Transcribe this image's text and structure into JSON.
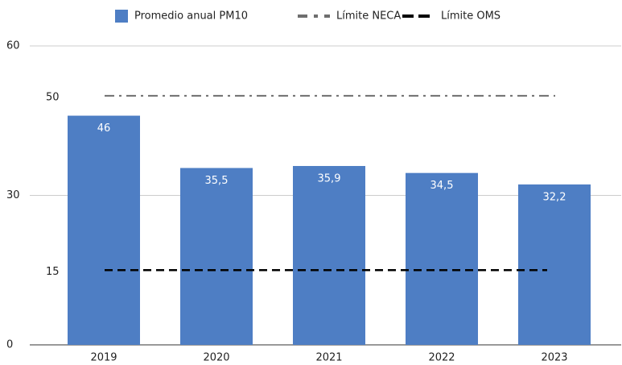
{
  "chart_data": {
    "type": "bar",
    "categories": [
      "2019",
      "2020",
      "2021",
      "2022",
      "2023"
    ],
    "series": [
      {
        "name": "Promedio anual PM10",
        "color": "#4e7ec4",
        "values": [
          46,
          35.5,
          35.9,
          34.5,
          32.2
        ],
        "value_labels": [
          "46",
          "35,5",
          "35,9",
          "34,5",
          "32,2"
        ]
      }
    ],
    "reference_lines": [
      {
        "name": "Límite NECA",
        "value": 50,
        "color": "#6e6e6e",
        "dash": "dashdot"
      },
      {
        "name": "Límite OMS",
        "value": 15,
        "color": "#000000",
        "dash": "dashed"
      }
    ],
    "ylim": [
      0,
      60
    ],
    "yticks": [
      0,
      30,
      60
    ],
    "grid": true
  }
}
